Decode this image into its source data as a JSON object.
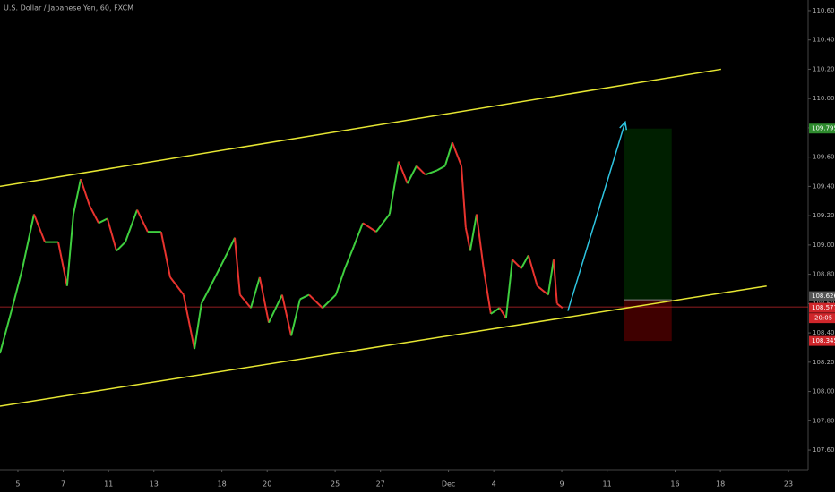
{
  "chart_data": {
    "type": "line",
    "title": "U.S. Dollar / Japanese Yen, 60, FXCM",
    "x": [
      -0.79,
      -0.2,
      0.2,
      0.71,
      1.19,
      1.78,
      2.17,
      2.45,
      2.77,
      3.16,
      3.56,
      3.95,
      4.35,
      4.74,
      5.26,
      5.73,
      6.32,
      6.72,
      7.31,
      7.79,
      8.1,
      8.7,
      9.29,
      9.57,
      9.8,
      10.28,
      10.67,
      11.07,
      11.66,
      12.06,
      12.45,
      12.85,
      13.44,
      14.03,
      14.43,
      14.82,
      15.22,
      15.81,
      16.4,
      16.8,
      17.19,
      17.59,
      17.98,
      18.5,
      18.85,
      19.17,
      19.57,
      19.76,
      19.96,
      20.24,
      20.55,
      20.87,
      21.26,
      21.54,
      21.82,
      22.21,
      22.53,
      22.92,
      23.4,
      23.64,
      23.79,
      24.03
    ],
    "values": [
      108.26,
      108.6,
      108.84,
      109.21,
      109.02,
      109.02,
      108.72,
      109.21,
      109.45,
      109.27,
      109.15,
      109.18,
      108.96,
      109.02,
      109.24,
      109.09,
      109.09,
      108.78,
      108.66,
      108.29,
      108.6,
      108.78,
      108.96,
      109.05,
      108.66,
      108.57,
      108.78,
      108.47,
      108.66,
      108.38,
      108.63,
      108.66,
      108.57,
      108.66,
      108.84,
      108.99,
      109.15,
      109.09,
      109.21,
      109.57,
      109.42,
      109.54,
      109.48,
      109.51,
      109.54,
      109.7,
      109.54,
      109.12,
      108.96,
      109.21,
      108.84,
      108.53,
      108.57,
      108.5,
      108.9,
      108.84,
      108.93,
      108.72,
      108.66,
      108.9,
      108.6,
      108.57
    ],
    "up_color": "#3fcf3f",
    "down_color": "#e8332e",
    "xlim": [
      -0.79,
      34.87
    ],
    "xticks": [
      {
        "value": 0,
        "label": "5"
      },
      {
        "value": 2,
        "label": "7"
      },
      {
        "value": 4,
        "label": "11"
      },
      {
        "value": 6,
        "label": "13"
      },
      {
        "value": 9,
        "label": "18"
      },
      {
        "value": 11,
        "label": "20"
      },
      {
        "value": 14,
        "label": "25"
      },
      {
        "value": 16,
        "label": "27"
      },
      {
        "value": 19,
        "label": "Dec"
      },
      {
        "value": 21,
        "label": "4"
      },
      {
        "value": 24,
        "label": "9"
      },
      {
        "value": 26,
        "label": "11"
      },
      {
        "value": 29,
        "label": "16"
      },
      {
        "value": 31,
        "label": "18"
      },
      {
        "value": 34,
        "label": "23"
      }
    ],
    "ylim": [
      107.466,
      110.673
    ],
    "yticks": [
      {
        "value": 107.6,
        "label": "107.600"
      },
      {
        "value": 107.8,
        "label": "107.800"
      },
      {
        "value": 108.0,
        "label": "108.000"
      },
      {
        "value": 108.2,
        "label": "108.200"
      },
      {
        "value": 108.4,
        "label": "108.400"
      },
      {
        "value": 108.6,
        "label": "108.600"
      },
      {
        "value": 108.8,
        "label": "108.800"
      },
      {
        "value": 109.0,
        "label": "109.000"
      },
      {
        "value": 109.2,
        "label": "109.200"
      },
      {
        "value": 109.4,
        "label": "109.400"
      },
      {
        "value": 109.6,
        "label": "109.600"
      },
      {
        "value": 109.8,
        "label": "109.800"
      },
      {
        "value": 110.0,
        "label": "110.000"
      },
      {
        "value": 110.2,
        "label": "110.200"
      },
      {
        "value": 110.4,
        "label": "110.400"
      },
      {
        "value": 110.6,
        "label": "110.600"
      }
    ],
    "trend_lines": [
      {
        "x": [
          -0.79,
          31.03
        ],
        "y": [
          109.4,
          110.2
        ],
        "color": "#e6e632"
      },
      {
        "x": [
          -0.79,
          33.04
        ],
        "y": [
          107.9,
          108.72
        ],
        "color": "#e6e632"
      }
    ],
    "arrow": {
      "x": [
        24.27,
        26.8
      ],
      "y": [
        108.55,
        109.84
      ],
      "color": "#2ec4e0"
    },
    "position": {
      "x": [
        26.76,
        28.85
      ],
      "entry": 108.626,
      "target": 109.795,
      "stop": 108.345
    },
    "last_price": 108.577,
    "countdown": "20:05"
  }
}
